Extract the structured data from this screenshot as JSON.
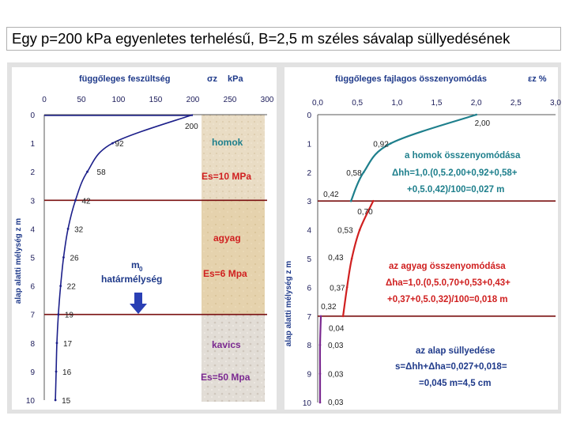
{
  "title": "Egy p=200 kPa egyenletes terhelésű, B=2,5 m széles  sávalap süllyedésének",
  "left_chart": {
    "axis_title": "függőleges feszültség",
    "axis_symbol": "σz",
    "axis_unit": "kPa",
    "x_ticks": [
      "0",
      "50",
      "100",
      "150",
      "200",
      "250",
      "300"
    ],
    "y_ticks": [
      "0",
      "1",
      "2",
      "3",
      "4",
      "5",
      "6",
      "7",
      "8",
      "9",
      "10"
    ],
    "ylabel": "alap alatti mélység   z   m",
    "stress_labels": [
      {
        "z": 0.5,
        "value": "200"
      },
      {
        "z": 1,
        "value": "92"
      },
      {
        "z": 2,
        "value": "58"
      },
      {
        "z": 3,
        "value": "42"
      },
      {
        "z": 4,
        "value": "32"
      },
      {
        "z": 5,
        "value": "26"
      },
      {
        "z": 6,
        "value": "22"
      },
      {
        "z": 7,
        "value": "19"
      },
      {
        "z": 8,
        "value": "17"
      },
      {
        "z": 9,
        "value": "16"
      },
      {
        "z": 10,
        "value": "15"
      }
    ],
    "m0_label": "m",
    "m0_sub": "0",
    "m0_desc": "határmélység"
  },
  "soil_layers": [
    {
      "name": "homok",
      "es": "Es=10 MPa",
      "color": "#1e7f8c",
      "es_color": "#d02020",
      "z_top": 0,
      "z_bot": 3
    },
    {
      "name": "agyag",
      "es": "Es=6 Mpa",
      "color": "#d02020",
      "es_color": "#d02020",
      "z_top": 3,
      "z_bot": 7
    },
    {
      "name": "kavics",
      "es": "Es=50 Mpa",
      "color": "#7a2890",
      "es_color": "#7a2890",
      "z_top": 7,
      "z_bot": 10
    }
  ],
  "right_chart": {
    "axis_title": "függőleges fajlagos összenyomódás",
    "axis_symbol": "εz %",
    "x_ticks": [
      "0,0",
      "0,5",
      "1,0",
      "1,5",
      "2,0",
      "2,5",
      "3,0"
    ],
    "y_ticks": [
      "0",
      "1",
      "2",
      "3",
      "4",
      "5",
      "6",
      "7",
      "8",
      "9",
      "10"
    ],
    "ylabel": "alap alatti mélység   z   m",
    "strain_labels": [
      {
        "z": 0.25,
        "value": "2,00"
      },
      {
        "z": 1,
        "value": "0,92"
      },
      {
        "z": 2,
        "value": "0,58"
      },
      {
        "z": 2.75,
        "value": "0,42"
      },
      {
        "z": 3.3,
        "value": "0,70"
      },
      {
        "z": 4,
        "value": "0,53"
      },
      {
        "z": 5,
        "value": "0,43"
      },
      {
        "z": 6,
        "value": "0,37"
      },
      {
        "z": 6.7,
        "value": "0,32"
      },
      {
        "z": 7.4,
        "value": "0,04"
      },
      {
        "z": 8,
        "value": "0,03"
      },
      {
        "z": 9,
        "value": "0,03"
      },
      {
        "z": 10,
        "value": "0,03"
      }
    ],
    "sand_text": [
      "a homok összenyomódása",
      "Δhh=1,0.(0,5.2,00+0,92+0,58+",
      "+0,5.0,42)/100=0,027 m"
    ],
    "clay_text": [
      "az agyag összenyomódása",
      "Δha=1,0.(0,5.0,70+0,53+0,43+",
      "+0,37+0,5.0,32)/100=0,018 m"
    ],
    "total_text": [
      "az alap süllyedése",
      "s=Δhh+Δha=0,027+0,018=",
      "=0,045 m=4,5 cm"
    ]
  },
  "colors": {
    "stress_curve": "#1c1f8a",
    "sand": "#1e7f8c",
    "clay": "#d02020",
    "gravel": "#7a2890",
    "boundary": "#7a1010",
    "axis_title": "#1f3a8a",
    "tick": "#2a2f8f"
  },
  "chart_data": [
    {
      "type": "line",
      "title": "függőleges feszültség σz kPa",
      "xlabel": "függőleges feszültség σz kPa",
      "ylabel": "alap alatti mélység z m",
      "xlim": [
        0,
        300
      ],
      "ylim": [
        0,
        10
      ],
      "series": [
        {
          "x": [
            200,
            92,
            58,
            42,
            32,
            26,
            22,
            19,
            17,
            16,
            15
          ],
          "y": [
            0,
            1,
            2,
            3,
            4,
            5,
            6,
            7,
            8,
            9,
            10
          ]
        }
      ]
    },
    {
      "type": "line",
      "title": "függőleges fajlagos összenyomódás εz %",
      "xlabel": "függőleges fajlagos összenyomódás εz %",
      "ylabel": "alap alatti mélység z m",
      "xlim": [
        0,
        3
      ],
      "ylim": [
        0,
        10
      ],
      "series": [
        {
          "name": "homok",
          "x": [
            2.0,
            0.92,
            0.58,
            0.42
          ],
          "y": [
            0,
            1,
            2,
            3
          ]
        },
        {
          "name": "agyag",
          "x": [
            0.7,
            0.53,
            0.43,
            0.37,
            0.32
          ],
          "y": [
            3,
            4,
            5,
            6,
            7
          ]
        },
        {
          "name": "kavics",
          "x": [
            0.04,
            0.03,
            0.03,
            0.03
          ],
          "y": [
            7,
            8,
            9,
            10
          ]
        }
      ]
    }
  ]
}
